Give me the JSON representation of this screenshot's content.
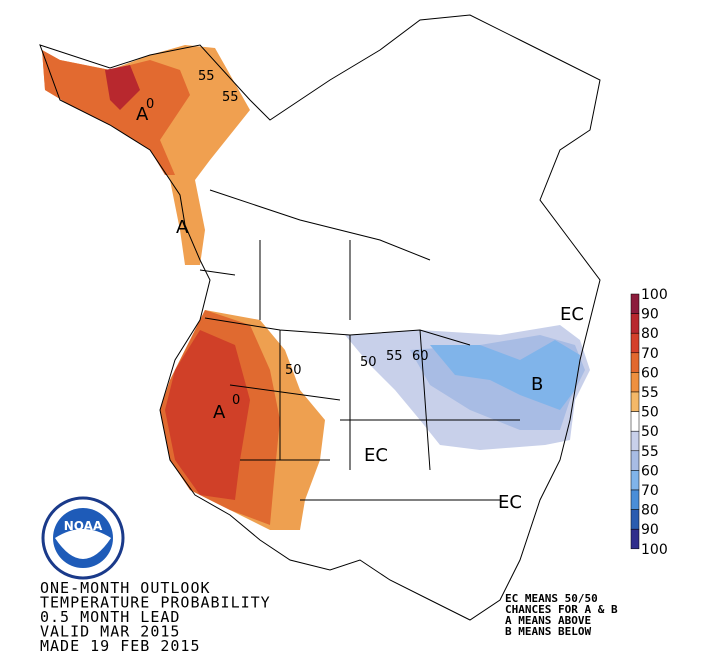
{
  "title_lines": [
    "ONE-MONTH OUTLOOK",
    "TEMPERATURE PROBABILITY",
    "0.5 MONTH LEAD",
    "VALID MAR 2015",
    "MADE 19 FEB 2015"
  ],
  "notes": [
    "EC MEANS 50/50",
    "CHANCES FOR A & B",
    "A MEANS ABOVE",
    "B MEANS BELOW"
  ],
  "logo": "NOAA",
  "legend": {
    "labels": [
      "100",
      "90",
      "80",
      "70",
      "60",
      "55",
      "50",
      "50",
      "55",
      "60",
      "70",
      "80",
      "90",
      "100"
    ],
    "colors": [
      "#8c1c3c",
      "#b8282e",
      "#d4402a",
      "#e2682e",
      "#ee9040",
      "#f4b868",
      "#ffffff",
      "#c8d0ea",
      "#a8bce4",
      "#80b4ea",
      "#4a8ed8",
      "#2a5cb0",
      "#302e8c"
    ]
  },
  "map_labels": [
    "A",
    "A",
    "A",
    "B",
    "EC",
    "EC",
    "EC",
    "55",
    "55",
    "0",
    "50",
    "50",
    "55",
    "60",
    "0"
  ]
}
